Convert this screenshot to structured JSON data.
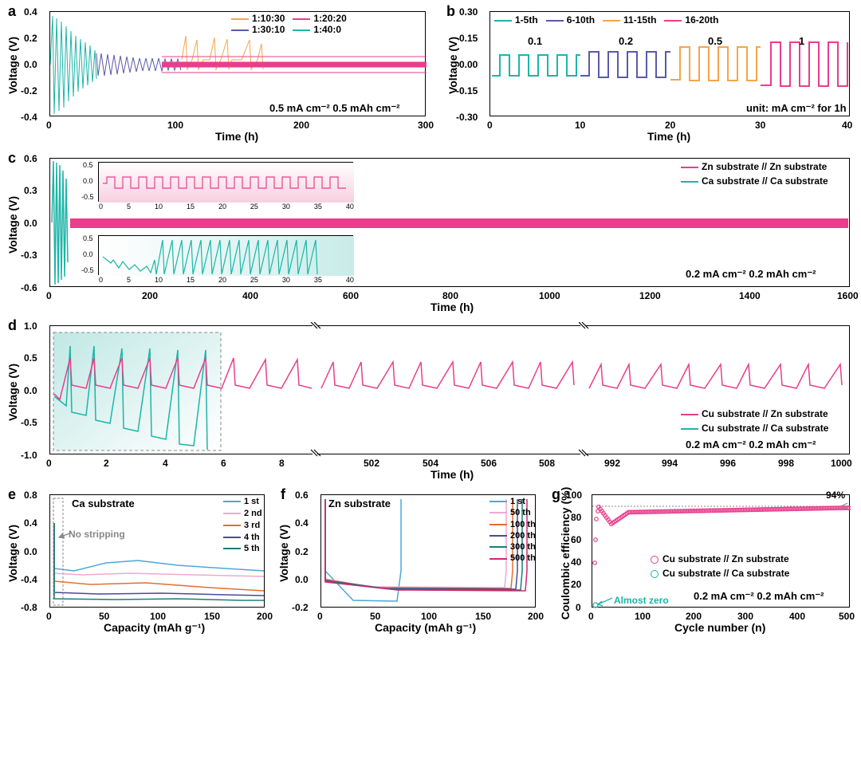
{
  "colors": {
    "orange": "#f5a54a",
    "pink": "#e83e8c",
    "purple": "#5a5aa8",
    "teal": "#1db5a8",
    "blue": "#4ba8d8",
    "lightpink": "#f0a8d0",
    "darkorange": "#e07030",
    "darkpurple": "#4a4a98",
    "darkteal": "#188078",
    "darkpink": "#d02870",
    "gray": "#888888",
    "black": "#000000"
  },
  "panel_a": {
    "label": "a",
    "ylabel": "Voltage (V)",
    "xlabel": "Time (h)",
    "ylim": [
      -0.4,
      0.4
    ],
    "ytick_step": 0.2,
    "xlim": [
      0,
      300
    ],
    "xtick_step": 100,
    "annotation": "0.5 mA cm⁻² 0.5 mAh cm⁻²",
    "legend": [
      {
        "label": "1:10:30",
        "color": "#f5a54a"
      },
      {
        "label": "1:20:20",
        "color": "#e83e8c"
      },
      {
        "label": "1:30:10",
        "color": "#5a5aa8"
      },
      {
        "label": "1:40:0",
        "color": "#1db5a8"
      }
    ]
  },
  "panel_b": {
    "label": "b",
    "ylabel": "Voltage (V)",
    "xlabel": "Time (h)",
    "ylim": [
      -0.3,
      0.3
    ],
    "ytick_step": 0.15,
    "xlim": [
      0,
      40
    ],
    "xtick_step": 10,
    "annotation": "unit: mA cm⁻² for 1h",
    "step_labels": [
      "0.1",
      "0.2",
      "0.5",
      "1"
    ],
    "legend": [
      {
        "label": "1-5th",
        "color": "#1db5a8"
      },
      {
        "label": "6-10th",
        "color": "#5a5aa8"
      },
      {
        "label": "11-15th",
        "color": "#f5a54a"
      },
      {
        "label": "16-20th",
        "color": "#e83e8c"
      }
    ]
  },
  "panel_c": {
    "label": "c",
    "ylabel": "Voltage (V)",
    "xlabel": "Time (h)",
    "ylim": [
      -0.6,
      0.6
    ],
    "ytick_step": 0.3,
    "xlim": [
      0,
      1600
    ],
    "xtick_step": 200,
    "annotation": "0.2 mA cm⁻² 0.2 mAh cm⁻²",
    "legend": [
      {
        "label": "Zn substrate // Zn substrate",
        "color": "#e83e8c"
      },
      {
        "label": "Ca substrate // Ca substrate",
        "color": "#1db5a8"
      }
    ],
    "inset_top": {
      "ylim": [
        -0.5,
        0.5
      ],
      "xlim": [
        0,
        42
      ]
    },
    "inset_bot": {
      "ylim": [
        -0.5,
        0.5
      ],
      "xlim": [
        0,
        42
      ]
    }
  },
  "panel_d": {
    "label": "d",
    "ylabel": "Voltage (V)",
    "xlabel": "Time (h)",
    "ylim": [
      -1.0,
      1.0
    ],
    "ytick_step": 0.5,
    "segments": [
      {
        "xlim": [
          0,
          9
        ],
        "ticks": [
          0,
          2,
          4,
          6,
          8
        ]
      },
      {
        "xlim": [
          500,
          509
        ],
        "ticks": [
          502,
          504,
          506,
          508
        ]
      },
      {
        "xlim": [
          991,
          1000
        ],
        "ticks": [
          992,
          994,
          996,
          998,
          1000
        ]
      }
    ],
    "annotation": "0.2 mA cm⁻² 0.2 mAh cm⁻²",
    "legend": [
      {
        "label": "Cu substrate // Zn substrate",
        "color": "#e83e8c"
      },
      {
        "label": "Cu substrate // Ca substrate",
        "color": "#1db5a8"
      }
    ]
  },
  "panel_e": {
    "label": "e",
    "ylabel": "Voltage (V)",
    "xlabel": "Capacity (mAh g⁻¹)",
    "ylim": [
      -0.8,
      0.8
    ],
    "yticks": [
      -0.8,
      -0.4,
      0.0,
      0.4,
      0.8
    ],
    "xlim": [
      0,
      200
    ],
    "xtick_step": 50,
    "title": "Ca substrate",
    "no_strip": "No stripping",
    "legend": [
      {
        "label": "1 st",
        "color": "#4ba8d8"
      },
      {
        "label": "2 nd",
        "color": "#f0a8d0"
      },
      {
        "label": "3 rd",
        "color": "#e07030"
      },
      {
        "label": "4 th",
        "color": "#4a4a98"
      },
      {
        "label": "5 th",
        "color": "#188078"
      }
    ]
  },
  "panel_f": {
    "label": "f",
    "ylabel": "Voltage (V)",
    "xlabel": "Capacity (mAh g⁻¹)",
    "ylim": [
      -0.2,
      0.6
    ],
    "ytick_step": 0.2,
    "xlim": [
      0,
      200
    ],
    "xtick_step": 50,
    "title": "Zn substrate",
    "legend": [
      {
        "label": "1 st",
        "color": "#4ba8d8"
      },
      {
        "label": "50 th",
        "color": "#f0a8d0"
      },
      {
        "label": "100 th",
        "color": "#e07030"
      },
      {
        "label": "200 th",
        "color": "#4a4a98"
      },
      {
        "label": "300 th",
        "color": "#188078"
      },
      {
        "label": "500 th",
        "color": "#d02870"
      }
    ]
  },
  "panel_g": {
    "label": "g",
    "ylabel": "Coulombic efficiency (%)",
    "xlabel": "Cycle number (n)",
    "ylim": [
      0,
      100
    ],
    "ytick_step": 20,
    "extra_y": 106,
    "xlim": [
      0,
      500
    ],
    "xtick_step": 100,
    "annotation": "0.2 mA cm⁻² 0.2 mAh cm⁻²",
    "target_label": "94%",
    "almost_zero": "Almost zero",
    "legend": [
      {
        "label": "Cu substrate // Zn substrate",
        "color": "#e83e8c"
      },
      {
        "label": "Cu substrate // Ca substrate",
        "color": "#1db5a8"
      }
    ]
  }
}
